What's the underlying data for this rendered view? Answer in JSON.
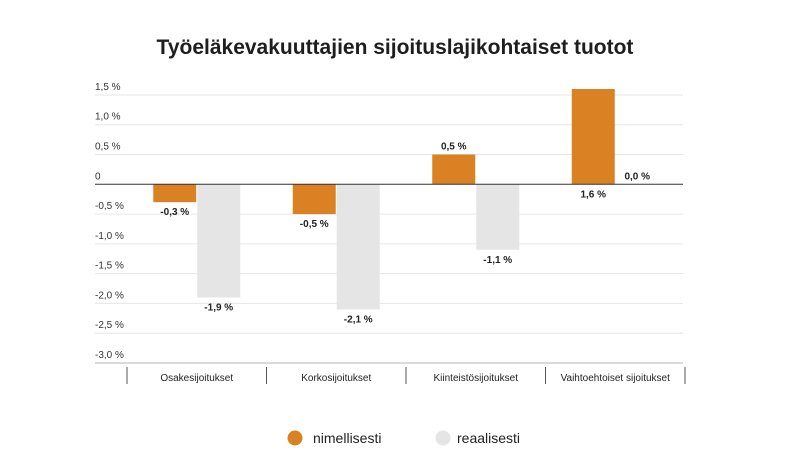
{
  "chart_data": {
    "type": "bar",
    "title": "Työeläkevakuuttajien sijoituslajikohtaiset tuotot",
    "xlabel": "",
    "ylabel": "",
    "categories": [
      "Osakesijoitukset",
      "Korkosijoitukset",
      "Kiinteistösijoitukset",
      "Vaihtoehtoiset sijoitukset"
    ],
    "series": [
      {
        "name": "nimellisesti",
        "color": "#DA8223",
        "values": [
          -0.3,
          -0.5,
          0.5,
          1.6
        ],
        "data_labels": [
          "-0,3 %",
          "-0,5 %",
          "0,5 %",
          "1,6 %"
        ]
      },
      {
        "name": "reaalisesti",
        "color": "#E5E5E5",
        "values": [
          -1.9,
          -2.1,
          -1.1,
          0.0
        ],
        "data_labels": [
          "-1,9 %",
          "-2,1 %",
          "-1,1 %",
          "0,0 %"
        ]
      }
    ],
    "yticks": [
      1.5,
      1.0,
      0.5,
      0,
      -0.5,
      -1.0,
      -1.5,
      -2.0,
      -2.5,
      -3.0
    ],
    "ytick_labels": [
      "1,5 %",
      "1,0 %",
      "0,5 %",
      "0",
      "-0,5 %",
      "-1,0 %",
      "-1,5 %",
      "-2,0 %",
      "-2,5 %",
      "-3,0 %"
    ],
    "ylim": [
      -3.0,
      1.6
    ],
    "grid": true,
    "legend_position": "bottom"
  }
}
